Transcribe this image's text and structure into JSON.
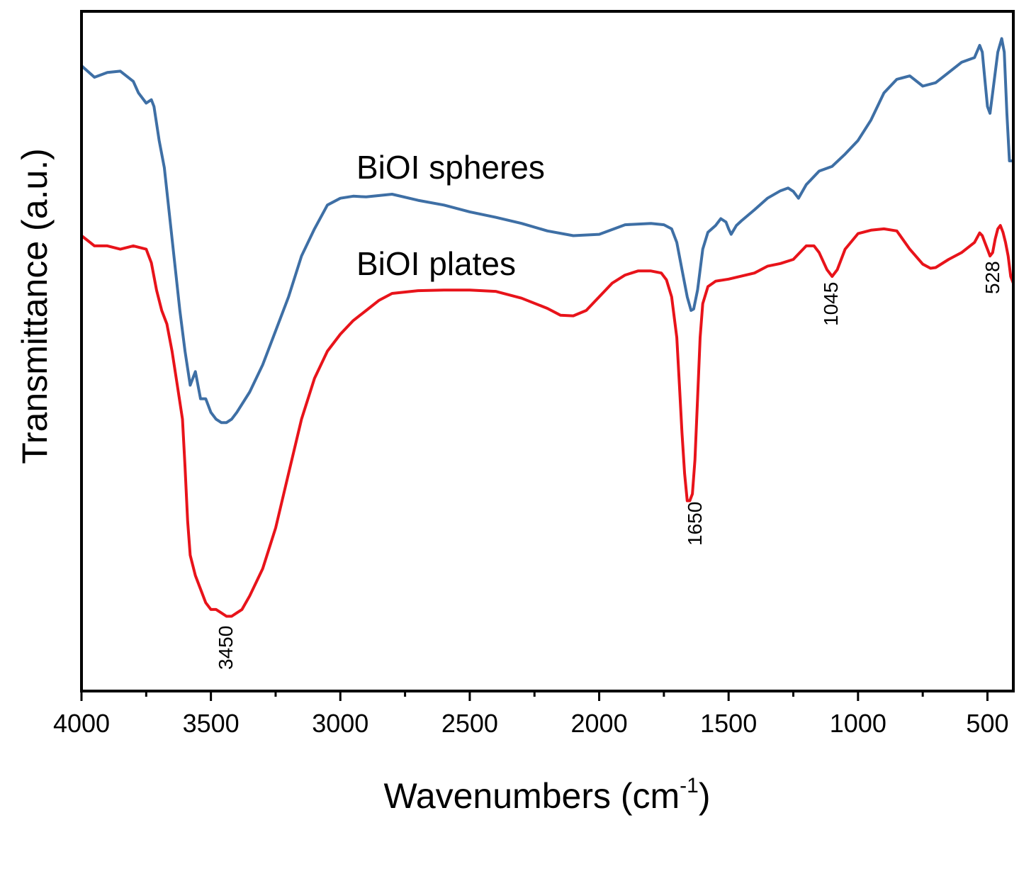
{
  "chart_data": {
    "type": "line",
    "title": "",
    "xlabel_main": "Wavenumbers (cm",
    "xlabel_sup": "-1",
    "xlabel_close": ")",
    "ylabel": "Transmittance (a.u.)",
    "xlim": [
      4000,
      400
    ],
    "ylim": [
      0,
      100
    ],
    "x_reversed": true,
    "y_ticks_shown": false,
    "grid": false,
    "xticks": [
      4000,
      3500,
      3000,
      2500,
      2000,
      1500,
      1000,
      500
    ],
    "xtick_labels": [
      "4000",
      "3500",
      "3000",
      "2500",
      "2000",
      "1500",
      "1000",
      "500"
    ],
    "series": [
      {
        "name": "BiOI spheres",
        "color": "#3e6fa5",
        "points": [
          [
            4000,
            92
          ],
          [
            3950,
            90.3
          ],
          [
            3900,
            91
          ],
          [
            3850,
            91.2
          ],
          [
            3800,
            89.7
          ],
          [
            3780,
            88
          ],
          [
            3750,
            86.5
          ],
          [
            3730,
            87
          ],
          [
            3720,
            86
          ],
          [
            3700,
            81
          ],
          [
            3680,
            77
          ],
          [
            3660,
            70
          ],
          [
            3640,
            63
          ],
          [
            3620,
            56
          ],
          [
            3600,
            50
          ],
          [
            3580,
            45
          ],
          [
            3560,
            47
          ],
          [
            3540,
            43
          ],
          [
            3520,
            43
          ],
          [
            3500,
            41
          ],
          [
            3480,
            40
          ],
          [
            3460,
            39.5
          ],
          [
            3440,
            39.5
          ],
          [
            3420,
            40
          ],
          [
            3400,
            41
          ],
          [
            3350,
            44
          ],
          [
            3300,
            48
          ],
          [
            3250,
            53
          ],
          [
            3200,
            58
          ],
          [
            3150,
            64
          ],
          [
            3100,
            68
          ],
          [
            3050,
            71.5
          ],
          [
            3000,
            72.5
          ],
          [
            2950,
            72.8
          ],
          [
            2900,
            72.7
          ],
          [
            2800,
            73.1
          ],
          [
            2700,
            72.2
          ],
          [
            2600,
            71.5
          ],
          [
            2500,
            70.5
          ],
          [
            2400,
            69.7
          ],
          [
            2300,
            68.8
          ],
          [
            2200,
            67.7
          ],
          [
            2100,
            67
          ],
          [
            2000,
            67.2
          ],
          [
            1900,
            68.6
          ],
          [
            1800,
            68.8
          ],
          [
            1750,
            68.6
          ],
          [
            1720,
            68
          ],
          [
            1700,
            66
          ],
          [
            1680,
            62
          ],
          [
            1660,
            58
          ],
          [
            1645,
            56
          ],
          [
            1635,
            56.2
          ],
          [
            1620,
            59
          ],
          [
            1600,
            65
          ],
          [
            1580,
            67.5
          ],
          [
            1550,
            68.5
          ],
          [
            1530,
            69.5
          ],
          [
            1510,
            69
          ],
          [
            1500,
            68
          ],
          [
            1490,
            67.2
          ],
          [
            1470,
            68.5
          ],
          [
            1450,
            69.2
          ],
          [
            1400,
            70.8
          ],
          [
            1350,
            72.5
          ],
          [
            1300,
            73.6
          ],
          [
            1270,
            74
          ],
          [
            1250,
            73.5
          ],
          [
            1230,
            72.5
          ],
          [
            1200,
            74.5
          ],
          [
            1150,
            76.5
          ],
          [
            1100,
            77.2
          ],
          [
            1050,
            79
          ],
          [
            1000,
            81
          ],
          [
            950,
            84
          ],
          [
            900,
            88
          ],
          [
            850,
            90
          ],
          [
            800,
            90.5
          ],
          [
            750,
            89
          ],
          [
            700,
            89.5
          ],
          [
            650,
            91
          ],
          [
            600,
            92.5
          ],
          [
            550,
            93.2
          ],
          [
            530,
            95
          ],
          [
            520,
            94
          ],
          [
            510,
            90
          ],
          [
            500,
            86
          ],
          [
            490,
            85
          ],
          [
            480,
            88
          ],
          [
            460,
            94
          ],
          [
            445,
            96
          ],
          [
            435,
            94
          ],
          [
            425,
            85
          ],
          [
            415,
            78
          ],
          [
            400,
            78
          ]
        ]
      },
      {
        "name": "BiOI plates",
        "color": "#e8131a",
        "points": [
          [
            4000,
            67
          ],
          [
            3950,
            65.5
          ],
          [
            3900,
            65.5
          ],
          [
            3850,
            65
          ],
          [
            3800,
            65.5
          ],
          [
            3750,
            65
          ],
          [
            3730,
            63
          ],
          [
            3710,
            59
          ],
          [
            3690,
            56
          ],
          [
            3670,
            54
          ],
          [
            3650,
            50
          ],
          [
            3630,
            45
          ],
          [
            3610,
            40
          ],
          [
            3600,
            33
          ],
          [
            3590,
            25
          ],
          [
            3580,
            20
          ],
          [
            3560,
            17
          ],
          [
            3540,
            15
          ],
          [
            3520,
            13
          ],
          [
            3500,
            12
          ],
          [
            3480,
            12
          ],
          [
            3460,
            11.5
          ],
          [
            3440,
            11
          ],
          [
            3420,
            11
          ],
          [
            3400,
            11.5
          ],
          [
            3380,
            12
          ],
          [
            3350,
            14
          ],
          [
            3300,
            18
          ],
          [
            3250,
            24
          ],
          [
            3200,
            32
          ],
          [
            3150,
            40
          ],
          [
            3100,
            46
          ],
          [
            3050,
            50
          ],
          [
            3000,
            52.5
          ],
          [
            2950,
            54.5
          ],
          [
            2900,
            56
          ],
          [
            2850,
            57.5
          ],
          [
            2800,
            58.5
          ],
          [
            2700,
            58.9
          ],
          [
            2600,
            59
          ],
          [
            2500,
            59
          ],
          [
            2400,
            58.8
          ],
          [
            2300,
            57.8
          ],
          [
            2200,
            56.3
          ],
          [
            2150,
            55.3
          ],
          [
            2100,
            55.2
          ],
          [
            2050,
            56
          ],
          [
            2000,
            58
          ],
          [
            1950,
            60
          ],
          [
            1900,
            61.2
          ],
          [
            1850,
            61.8
          ],
          [
            1800,
            61.8
          ],
          [
            1760,
            61.5
          ],
          [
            1740,
            60.5
          ],
          [
            1720,
            58
          ],
          [
            1700,
            52
          ],
          [
            1690,
            45
          ],
          [
            1680,
            38
          ],
          [
            1670,
            32
          ],
          [
            1660,
            28
          ],
          [
            1650,
            28
          ],
          [
            1640,
            29
          ],
          [
            1630,
            34
          ],
          [
            1620,
            43
          ],
          [
            1610,
            52
          ],
          [
            1600,
            57
          ],
          [
            1580,
            59.5
          ],
          [
            1550,
            60.3
          ],
          [
            1500,
            60.6
          ],
          [
            1400,
            61.5
          ],
          [
            1350,
            62.5
          ],
          [
            1300,
            62.9
          ],
          [
            1250,
            63.5
          ],
          [
            1200,
            65.5
          ],
          [
            1170,
            65.5
          ],
          [
            1150,
            64.5
          ],
          [
            1120,
            62
          ],
          [
            1100,
            61
          ],
          [
            1080,
            62
          ],
          [
            1050,
            65
          ],
          [
            1000,
            67.3
          ],
          [
            950,
            67.8
          ],
          [
            900,
            68
          ],
          [
            850,
            67.7
          ],
          [
            800,
            65
          ],
          [
            750,
            62.8
          ],
          [
            720,
            62.2
          ],
          [
            700,
            62.3
          ],
          [
            650,
            63.5
          ],
          [
            600,
            64.5
          ],
          [
            550,
            66
          ],
          [
            530,
            67.4
          ],
          [
            520,
            67
          ],
          [
            510,
            66
          ],
          [
            500,
            65
          ],
          [
            490,
            64
          ],
          [
            480,
            64.5
          ],
          [
            470,
            66.5
          ],
          [
            460,
            68
          ],
          [
            450,
            68.5
          ],
          [
            440,
            67.5
          ],
          [
            430,
            66
          ],
          [
            420,
            64
          ],
          [
            410,
            61
          ],
          [
            400,
            60
          ]
        ]
      }
    ],
    "annotations": [
      "3450",
      "1650",
      "1045",
      "528"
    ]
  }
}
